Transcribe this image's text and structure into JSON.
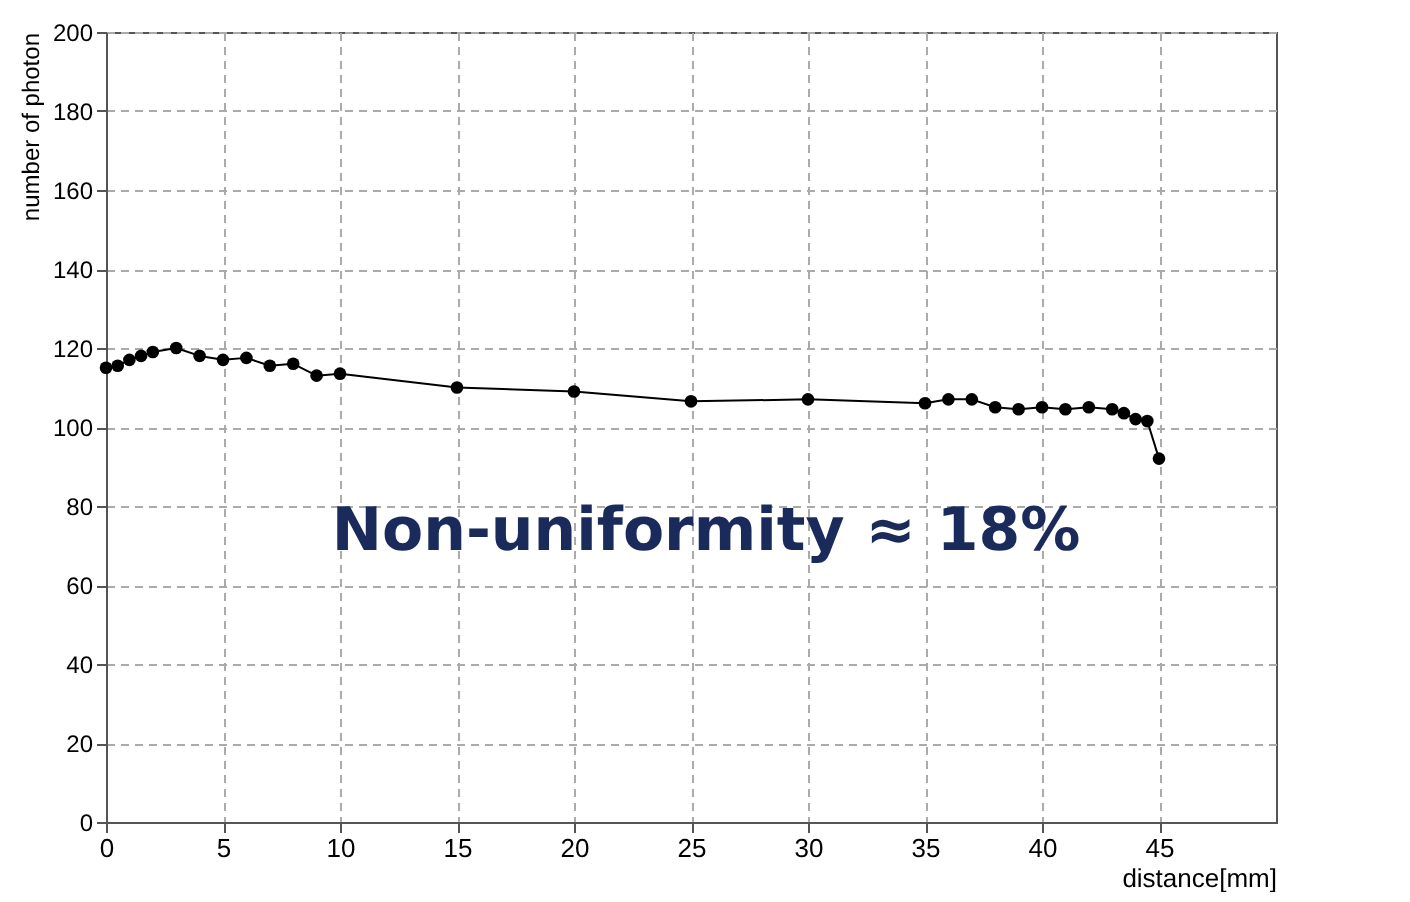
{
  "chart_data": {
    "type": "line",
    "xlabel": "distance[mm]",
    "ylabel": "number of photon",
    "x": [
      0,
      0.5,
      1,
      1.5,
      2,
      3,
      4,
      5,
      6,
      7,
      8,
      9,
      10,
      15,
      20,
      25,
      30,
      35,
      36,
      37,
      38,
      39,
      40,
      41,
      42,
      43,
      43.5,
      44,
      44.5,
      45
    ],
    "series": [
      {
        "color": "#000000",
        "values": [
          115,
          115.5,
          117,
          118,
          119,
          120,
          118,
          117,
          117.5,
          115.5,
          116,
          113,
          113.5,
          110,
          109,
          106.5,
          107,
          106,
          107,
          107,
          105,
          104.5,
          105,
          104.5,
          105,
          104.5,
          103.5,
          102,
          101.5,
          92
        ]
      }
    ],
    "xlim": [
      0,
      50
    ],
    "xticks": [
      0,
      5,
      10,
      15,
      20,
      25,
      30,
      35,
      40,
      45
    ],
    "ylim": [
      0,
      200
    ],
    "yticks": [
      0,
      20,
      40,
      60,
      80,
      100,
      120,
      140,
      160,
      180,
      200
    ],
    "grid": true,
    "marker": "circle",
    "legend": false,
    "annotations": [
      "Non-uniformity ≈ 18%"
    ]
  }
}
